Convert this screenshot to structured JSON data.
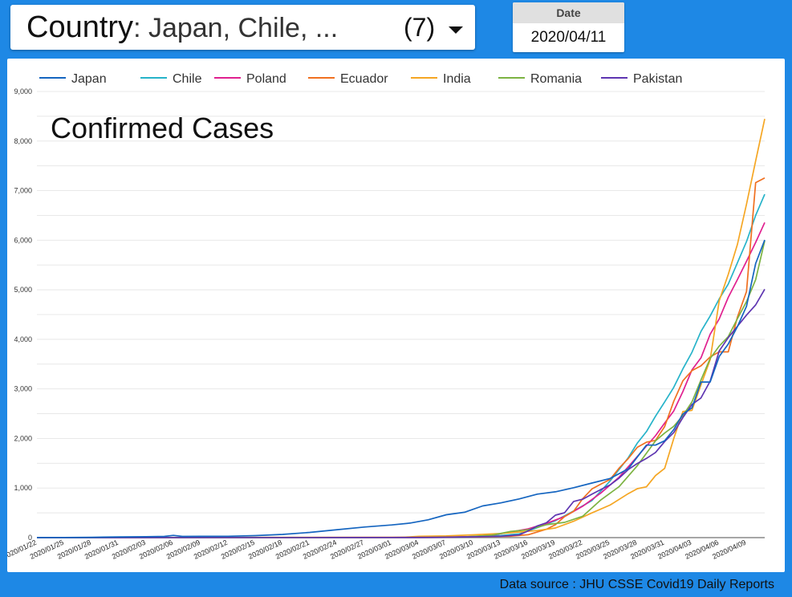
{
  "filters": {
    "country_label": "Country",
    "country_values": ": Japan, Chile, ...",
    "country_count": "(7)",
    "date_header": "Date",
    "date_value": "2020/04/11"
  },
  "footer": {
    "source": "Data source : JHU CSSE Covid19 Daily Reports"
  },
  "colors": {
    "background": "#1e88e5",
    "Japan": "#1565c0",
    "Chile": "#26b3c9",
    "Poland": "#e0208f",
    "Ecuador": "#f07020",
    "India": "#f5a623",
    "Romania": "#7cb342",
    "Pakistan": "#5e35b1"
  },
  "chart_data": {
    "type": "line",
    "title": "Confirmed Cases",
    "legend_position": "top",
    "grid": true,
    "ylim": [
      0,
      9000
    ],
    "yticks": [
      0,
      1000,
      2000,
      3000,
      4000,
      5000,
      6000,
      7000,
      8000,
      9000
    ],
    "ytick_labels": [
      "0",
      "1,000",
      "2,000",
      "3,000",
      "4,000",
      "5,000",
      "6,000",
      "7,000",
      "8,000",
      "9,000"
    ],
    "x_start": "2020/01/22",
    "x_end": "2020/04/11",
    "x_tick_labels": [
      "2020/01/22",
      "2020/01/25",
      "2020/01/28",
      "2020/01/31",
      "2020/02/03",
      "2020/02/06",
      "2020/02/09",
      "2020/02/12",
      "2020/02/15",
      "2020/02/18",
      "2020/02/21",
      "2020/02/24",
      "2020/02/27",
      "2020/03/01",
      "2020/03/04",
      "2020/03/07",
      "2020/03/10",
      "2020/03/13",
      "2020/03/16",
      "2020/03/19",
      "2020/03/22",
      "2020/03/25",
      "2020/03/28",
      "2020/03/31",
      "2020/04/03",
      "2020/04/06",
      "2020/04/09"
    ],
    "series": [
      {
        "name": "Japan",
        "points": [
          [
            "2020/01/22",
            2
          ],
          [
            "2020/01/25",
            2
          ],
          [
            "2020/01/28",
            7
          ],
          [
            "2020/01/31",
            15
          ],
          [
            "2020/02/03",
            20
          ],
          [
            "2020/02/05",
            25
          ],
          [
            "2020/02/06",
            45
          ],
          [
            "2020/02/07",
            25
          ],
          [
            "2020/02/09",
            26
          ],
          [
            "2020/02/12",
            28
          ],
          [
            "2020/02/15",
            41
          ],
          [
            "2020/02/18",
            65
          ],
          [
            "2020/02/21",
            105
          ],
          [
            "2020/02/24",
            160
          ],
          [
            "2020/02/27",
            214
          ],
          [
            "2020/03/01",
            256
          ],
          [
            "2020/03/03",
            293
          ],
          [
            "2020/03/05",
            360
          ],
          [
            "2020/03/07",
            461
          ],
          [
            "2020/03/09",
            511
          ],
          [
            "2020/03/11",
            639
          ],
          [
            "2020/03/13",
            701
          ],
          [
            "2020/03/15",
            780
          ],
          [
            "2020/03/17",
            878
          ],
          [
            "2020/03/19",
            924
          ],
          [
            "2020/03/21",
            1007
          ],
          [
            "2020/03/23",
            1101
          ],
          [
            "2020/03/25",
            1193
          ],
          [
            "2020/03/27",
            1387
          ],
          [
            "2020/03/29",
            1866
          ],
          [
            "2020/03/30",
            1866
          ],
          [
            "2020/03/31",
            1953
          ],
          [
            "2020/04/01",
            2178
          ],
          [
            "2020/04/02",
            2495
          ],
          [
            "2020/04/03",
            2617
          ],
          [
            "2020/04/04",
            3139
          ],
          [
            "2020/04/05",
            3139
          ],
          [
            "2020/04/06",
            3654
          ],
          [
            "2020/04/07",
            3906
          ],
          [
            "2020/04/08",
            4257
          ],
          [
            "2020/04/09",
            4667
          ],
          [
            "2020/04/10",
            5530
          ],
          [
            "2020/04/11",
            6005
          ]
        ]
      },
      {
        "name": "Chile",
        "points": [
          [
            "2020/01/22",
            0
          ],
          [
            "2020/03/03",
            1
          ],
          [
            "2020/03/07",
            7
          ],
          [
            "2020/03/10",
            17
          ],
          [
            "2020/03/13",
            43
          ],
          [
            "2020/03/15",
            75
          ],
          [
            "2020/03/17",
            201
          ],
          [
            "2020/03/19",
            342
          ],
          [
            "2020/03/21",
            537
          ],
          [
            "2020/03/23",
            746
          ],
          [
            "2020/03/25",
            1142
          ],
          [
            "2020/03/27",
            1610
          ],
          [
            "2020/03/28",
            1909
          ],
          [
            "2020/03/29",
            2139
          ],
          [
            "2020/03/30",
            2449
          ],
          [
            "2020/03/31",
            2738
          ],
          [
            "2020/04/01",
            3031
          ],
          [
            "2020/04/02",
            3404
          ],
          [
            "2020/04/03",
            3737
          ],
          [
            "2020/04/04",
            4161
          ],
          [
            "2020/04/05",
            4471
          ],
          [
            "2020/04/06",
            4815
          ],
          [
            "2020/04/07",
            5116
          ],
          [
            "2020/04/08",
            5546
          ],
          [
            "2020/04/09",
            5972
          ],
          [
            "2020/04/10",
            6501
          ],
          [
            "2020/04/11",
            6927
          ]
        ]
      },
      {
        "name": "Poland",
        "points": [
          [
            "2020/01/22",
            0
          ],
          [
            "2020/03/04",
            1
          ],
          [
            "2020/03/07",
            6
          ],
          [
            "2020/03/10",
            22
          ],
          [
            "2020/03/12",
            49
          ],
          [
            "2020/03/14",
            111
          ],
          [
            "2020/03/16",
            177
          ],
          [
            "2020/03/18",
            287
          ],
          [
            "2020/03/20",
            425
          ],
          [
            "2020/03/22",
            634
          ],
          [
            "2020/03/24",
            901
          ],
          [
            "2020/03/26",
            1221
          ],
          [
            "2020/03/28",
            1638
          ],
          [
            "2020/03/30",
            2055
          ],
          [
            "2020/03/31",
            2311
          ],
          [
            "2020/04/01",
            2554
          ],
          [
            "2020/04/02",
            2946
          ],
          [
            "2020/04/03",
            3383
          ],
          [
            "2020/04/04",
            3627
          ],
          [
            "2020/04/05",
            4102
          ],
          [
            "2020/04/06",
            4413
          ],
          [
            "2020/04/07",
            4848
          ],
          [
            "2020/04/08",
            5205
          ],
          [
            "2020/04/09",
            5575
          ],
          [
            "2020/04/10",
            5955
          ],
          [
            "2020/04/11",
            6356
          ]
        ]
      },
      {
        "name": "Ecuador",
        "points": [
          [
            "2020/01/22",
            0
          ],
          [
            "2020/03/01",
            6
          ],
          [
            "2020/03/05",
            13
          ],
          [
            "2020/03/10",
            15
          ],
          [
            "2020/03/14",
            28
          ],
          [
            "2020/03/16",
            58
          ],
          [
            "2020/03/18",
            168
          ],
          [
            "2020/03/19",
            260
          ],
          [
            "2020/03/20",
            426
          ],
          [
            "2020/03/21",
            532
          ],
          [
            "2020/03/22",
            789
          ],
          [
            "2020/03/23",
            981
          ],
          [
            "2020/03/24",
            1082
          ],
          [
            "2020/03/25",
            1173
          ],
          [
            "2020/03/26",
            1403
          ],
          [
            "2020/03/27",
            1595
          ],
          [
            "2020/03/28",
            1823
          ],
          [
            "2020/03/29",
            1924
          ],
          [
            "2020/03/30",
            1962
          ],
          [
            "2020/03/31",
            2240
          ],
          [
            "2020/04/01",
            2748
          ],
          [
            "2020/04/02",
            3163
          ],
          [
            "2020/04/03",
            3368
          ],
          [
            "2020/04/04",
            3465
          ],
          [
            "2020/04/05",
            3646
          ],
          [
            "2020/04/06",
            3747
          ],
          [
            "2020/04/07",
            3747
          ],
          [
            "2020/04/08",
            4450
          ],
          [
            "2020/04/09",
            4965
          ],
          [
            "2020/04/10",
            7161
          ],
          [
            "2020/04/11",
            7257
          ]
        ]
      },
      {
        "name": "India",
        "points": [
          [
            "2020/01/22",
            0
          ],
          [
            "2020/01/30",
            1
          ],
          [
            "2020/02/02",
            2
          ],
          [
            "2020/02/03",
            3
          ],
          [
            "2020/03/02",
            5
          ],
          [
            "2020/03/04",
            28
          ],
          [
            "2020/03/07",
            34
          ],
          [
            "2020/03/10",
            56
          ],
          [
            "2020/03/13",
            82
          ],
          [
            "2020/03/15",
            113
          ],
          [
            "2020/03/17",
            142
          ],
          [
            "2020/03/19",
            194
          ],
          [
            "2020/03/21",
            330
          ],
          [
            "2020/03/23",
            499
          ],
          [
            "2020/03/25",
            657
          ],
          [
            "2020/03/27",
            887
          ],
          [
            "2020/03/28",
            987
          ],
          [
            "2020/03/29",
            1024
          ],
          [
            "2020/03/30",
            1251
          ],
          [
            "2020/03/31",
            1397
          ],
          [
            "2020/04/01",
            1998
          ],
          [
            "2020/04/02",
            2543
          ],
          [
            "2020/04/03",
            2567
          ],
          [
            "2020/04/04",
            3082
          ],
          [
            "2020/04/05",
            3588
          ],
          [
            "2020/04/06",
            4778
          ],
          [
            "2020/04/07",
            5311
          ],
          [
            "2020/04/08",
            5916
          ],
          [
            "2020/04/09",
            6725
          ],
          [
            "2020/04/10",
            7598
          ],
          [
            "2020/04/11",
            8446
          ]
        ]
      },
      {
        "name": "Romania",
        "points": [
          [
            "2020/01/22",
            0
          ],
          [
            "2020/02/26",
            1
          ],
          [
            "2020/03/05",
            4
          ],
          [
            "2020/03/09",
            15
          ],
          [
            "2020/03/12",
            49
          ],
          [
            "2020/03/14",
            123
          ],
          [
            "2020/03/16",
            158
          ],
          [
            "2020/03/18",
            260
          ],
          [
            "2020/03/20",
            308
          ],
          [
            "2020/03/22",
            433
          ],
          [
            "2020/03/24",
            762
          ],
          [
            "2020/03/26",
            1029
          ],
          [
            "2020/03/28",
            1452
          ],
          [
            "2020/03/30",
            1952
          ],
          [
            "2020/03/31",
            2109
          ],
          [
            "2020/04/01",
            2245
          ],
          [
            "2020/04/02",
            2460
          ],
          [
            "2020/04/03",
            2738
          ],
          [
            "2020/04/04",
            3183
          ],
          [
            "2020/04/05",
            3613
          ],
          [
            "2020/04/06",
            3864
          ],
          [
            "2020/04/07",
            4057
          ],
          [
            "2020/04/08",
            4417
          ],
          [
            "2020/04/09",
            4761
          ],
          [
            "2020/04/10",
            5202
          ],
          [
            "2020/04/11",
            5990
          ]
        ]
      },
      {
        "name": "Pakistan",
        "points": [
          [
            "2020/01/22",
            0
          ],
          [
            "2020/02/26",
            2
          ],
          [
            "2020/03/01",
            4
          ],
          [
            "2020/03/06",
            6
          ],
          [
            "2020/03/10",
            16
          ],
          [
            "2020/03/13",
            28
          ],
          [
            "2020/03/15",
            53
          ],
          [
            "2020/03/16",
            136
          ],
          [
            "2020/03/17",
            236
          ],
          [
            "2020/03/18",
            299
          ],
          [
            "2020/03/19",
            454
          ],
          [
            "2020/03/20",
            501
          ],
          [
            "2020/03/21",
            730
          ],
          [
            "2020/03/22",
            776
          ],
          [
            "2020/03/23",
            875
          ],
          [
            "2020/03/24",
            972
          ],
          [
            "2020/03/25",
            1063
          ],
          [
            "2020/03/26",
            1201
          ],
          [
            "2020/03/27",
            1373
          ],
          [
            "2020/03/28",
            1495
          ],
          [
            "2020/03/29",
            1597
          ],
          [
            "2020/03/30",
            1717
          ],
          [
            "2020/03/31",
            1938
          ],
          [
            "2020/04/01",
            2118
          ],
          [
            "2020/04/02",
            2421
          ],
          [
            "2020/04/03",
            2686
          ],
          [
            "2020/04/04",
            2818
          ],
          [
            "2020/04/05",
            3157
          ],
          [
            "2020/04/06",
            3766
          ],
          [
            "2020/04/07",
            4035
          ],
          [
            "2020/04/08",
            4263
          ],
          [
            "2020/04/09",
            4489
          ],
          [
            "2020/04/10",
            4695
          ],
          [
            "2020/04/11",
            5011
          ]
        ]
      }
    ]
  }
}
